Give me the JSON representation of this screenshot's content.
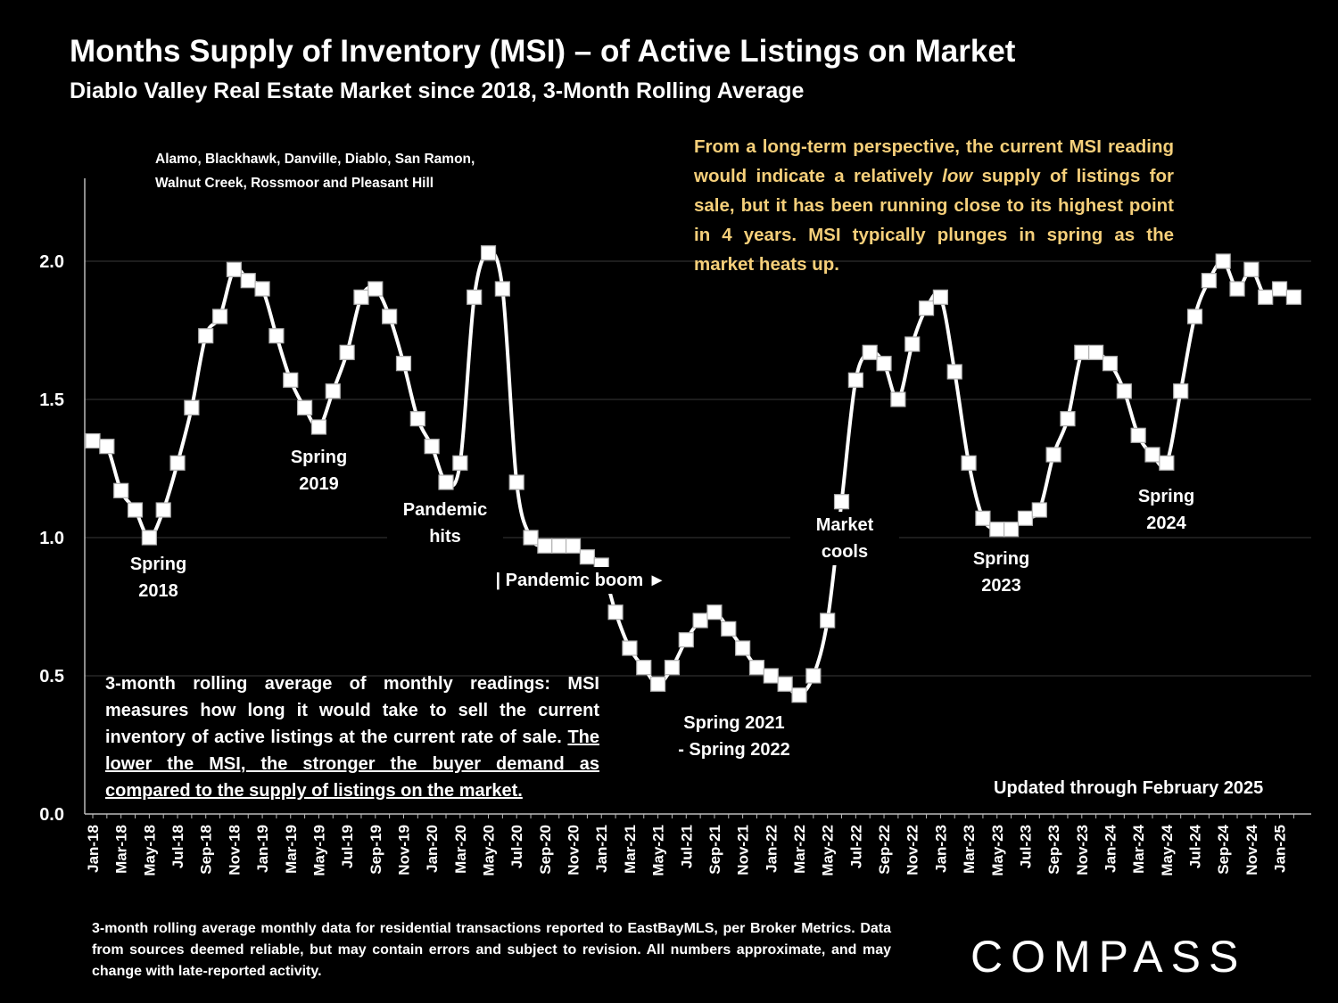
{
  "header": {
    "title": "Months Supply of Inventory (MSI) – of Active Listings on Market",
    "subtitle": "Diablo Valley Real Estate Market since 2018, 3-Month Rolling Average"
  },
  "areas_note": {
    "line1": "Alamo, Blackhawk, Danville, Diablo, San Ramon,",
    "line2": "Walnut Creek, Rossmoor and Pleasant Hill"
  },
  "callout": {
    "before": "From a long-term perspective, the current MSI reading would indicate a relatively ",
    "emph": "low",
    "after": " supply of listings for sale, but it has been running close to its highest point in 4 years. MSI typically plunges in spring as the market heats up."
  },
  "explanation": {
    "plain": "3-month rolling average of monthly readings: MSI measures how long it would take to sell the current inventory of active listings at the current rate of sale. ",
    "underlined": "The lower the MSI, the stronger the buyer demand as compared to the supply of listings on the market."
  },
  "updated": "Updated through February 2025",
  "footnote": "3-month rolling average monthly data for residential transactions reported to EastBayMLS, per Broker Metrics. Data from sources deemed reliable, but may contain errors and subject to revision. All numbers approximate, and may change with late-reported activity.",
  "brand": "COMPASS",
  "annotations": {
    "spring2018_l1": "Spring",
    "spring2018_l2": "2018",
    "spring2019_l1": "Spring",
    "spring2019_l2": "2019",
    "pandemic_l1": "Pandemic",
    "pandemic_l2": "hits",
    "boom": "| Pandemic boom ►",
    "spring2122_l1": "Spring 2021",
    "spring2122_l2": "- Spring 2022",
    "cools_l1": "Market",
    "cools_l2": "cools",
    "spring2023_l1": "Spring",
    "spring2023_l2": "2023",
    "spring2024_l1": "Spring",
    "spring2024_l2": "2024"
  },
  "colors": {
    "line": "#ffffff",
    "marker_fill": "#ffffff",
    "marker_edge": "#b0b0b0",
    "callout_text": "#f5cf7a",
    "gridline": "#3a3a3a"
  },
  "chart_data": {
    "type": "line",
    "ylim": [
      0,
      2.3
    ],
    "yticks": [
      "0.0",
      "0.5",
      "1.0",
      "1.5",
      "2.0"
    ],
    "xtick_labels": [
      "Jan-18",
      "Mar-18",
      "May-18",
      "Jul-18",
      "Sep-18",
      "Nov-18",
      "Jan-19",
      "Mar-19",
      "May-19",
      "Jul-19",
      "Sep-19",
      "Nov-19",
      "Jan-20",
      "Mar-20",
      "May-20",
      "Jul-20",
      "Sep-20",
      "Nov-20",
      "Jan-21",
      "Mar-21",
      "May-21",
      "Jul-21",
      "Sep-21",
      "Nov-21",
      "Jan-22",
      "Mar-22",
      "May-22",
      "Jul-22",
      "Sep-22",
      "Nov-22",
      "Jan-23",
      "Mar-23",
      "May-23",
      "Jul-23",
      "Sep-23",
      "Nov-23",
      "Jan-24",
      "Mar-24",
      "May-24",
      "Jul-24",
      "Sep-24",
      "Nov-24",
      "Jan-25"
    ],
    "grid": true,
    "x": [
      "Jan-18",
      "Feb-18",
      "Mar-18",
      "Apr-18",
      "May-18",
      "Jun-18",
      "Jul-18",
      "Aug-18",
      "Sep-18",
      "Oct-18",
      "Nov-18",
      "Dec-18",
      "Jan-19",
      "Feb-19",
      "Mar-19",
      "Apr-19",
      "May-19",
      "Jun-19",
      "Jul-19",
      "Aug-19",
      "Sep-19",
      "Oct-19",
      "Nov-19",
      "Dec-19",
      "Jan-20",
      "Feb-20",
      "Mar-20",
      "Apr-20",
      "May-20",
      "Jun-20",
      "Jul-20",
      "Aug-20",
      "Sep-20",
      "Oct-20",
      "Nov-20",
      "Dec-20",
      "Jan-21",
      "Feb-21",
      "Mar-21",
      "Apr-21",
      "May-21",
      "Jun-21",
      "Jul-21",
      "Aug-21",
      "Sep-21",
      "Oct-21",
      "Nov-21",
      "Dec-21",
      "Jan-22",
      "Feb-22",
      "Mar-22",
      "Apr-22",
      "May-22",
      "Jun-22",
      "Jul-22",
      "Aug-22",
      "Sep-22",
      "Oct-22",
      "Nov-22",
      "Dec-22",
      "Jan-23",
      "Feb-23",
      "Mar-23",
      "Apr-23",
      "May-23",
      "Jun-23",
      "Jul-23",
      "Aug-23",
      "Sep-23",
      "Oct-23",
      "Nov-23",
      "Dec-23",
      "Jan-24",
      "Feb-24",
      "Mar-24",
      "Apr-24",
      "May-24",
      "Jun-24",
      "Jul-24",
      "Aug-24",
      "Sep-24",
      "Oct-24",
      "Nov-24",
      "Dec-24",
      "Jan-25",
      "Feb-25"
    ],
    "series": [
      {
        "values": [
          1.35,
          1.33,
          1.17,
          1.1,
          1.0,
          1.1,
          1.27,
          1.47,
          1.73,
          1.8,
          1.97,
          1.93,
          1.9,
          1.73,
          1.57,
          1.47,
          1.4,
          1.53,
          1.67,
          1.87,
          1.9,
          1.8,
          1.63,
          1.43,
          1.33,
          1.2,
          1.27,
          1.87,
          2.03,
          1.9,
          1.2,
          1.0,
          0.97,
          0.97,
          0.97,
          0.93,
          0.9,
          0.73,
          0.6,
          0.53,
          0.47,
          0.53,
          0.63,
          0.7,
          0.73,
          0.67,
          0.6,
          0.53,
          0.5,
          0.47,
          0.43,
          0.5,
          0.7,
          1.13,
          1.57,
          1.67,
          1.63,
          1.5,
          1.7,
          1.83,
          1.87,
          1.6,
          1.27,
          1.07,
          1.03,
          1.03,
          1.07,
          1.1,
          1.3,
          1.43,
          1.67,
          1.67,
          1.63,
          1.53,
          1.37,
          1.3,
          1.27,
          1.53,
          1.8,
          1.93,
          2.0,
          1.9,
          1.97,
          1.87,
          1.9,
          1.87
        ]
      }
    ]
  }
}
